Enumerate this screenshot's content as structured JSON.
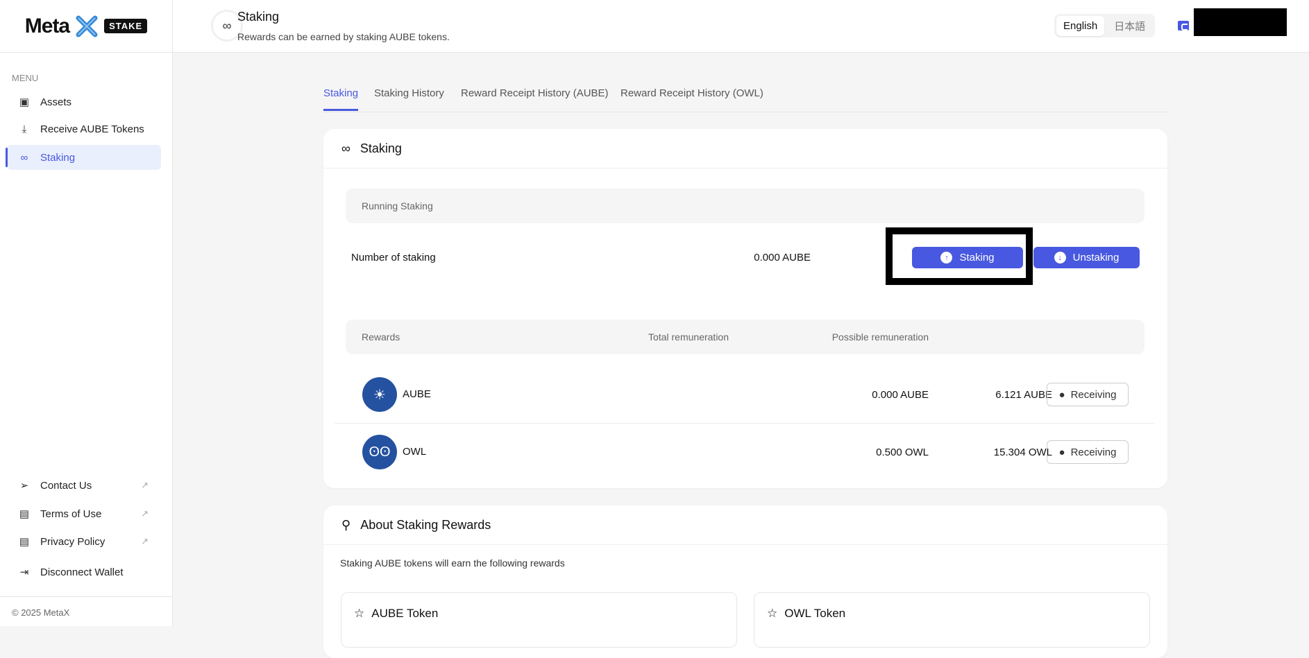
{
  "logo": {
    "text": "Meta",
    "badge": "STAKE"
  },
  "sidebar": {
    "menu_label": "MENU",
    "items": [
      {
        "label": "Assets",
        "icon": "wallet-icon"
      },
      {
        "label": "Receive AUBE Tokens",
        "icon": "download-icon"
      },
      {
        "label": "Staking",
        "icon": "staking-icon",
        "active": true
      }
    ],
    "bottom": [
      {
        "label": "Contact Us",
        "icon": "send-icon"
      },
      {
        "label": "Terms of Use",
        "icon": "document-icon"
      },
      {
        "label": "Privacy Policy",
        "icon": "document-icon"
      },
      {
        "label": "Disconnect Wallet",
        "icon": "logout-icon"
      }
    ],
    "copyright": "© 2025 MetaX"
  },
  "header": {
    "title": "Staking",
    "subtitle": "Rewards can be earned by staking AUBE tokens.",
    "languages": [
      "English",
      "日本語"
    ],
    "selected_language": "English"
  },
  "tabs": [
    "Staking",
    "Staking History",
    "Reward Receipt History (AUBE)",
    "Reward Receipt History (OWL)"
  ],
  "staking_card": {
    "title": "Staking",
    "running_label": "Running Staking",
    "number_label": "Number of staking",
    "number_value": "0.000 AUBE",
    "staking_button": "Staking",
    "unstaking_button": "Unstaking",
    "rewards_headers": [
      "Rewards",
      "Total remuneration",
      "Possible remuneration"
    ],
    "rewards": [
      {
        "token": "AUBE",
        "total": "6.121 AUBE",
        "possible": "0.000 AUBE",
        "button": "Receiving"
      },
      {
        "token": "OWL",
        "total": "15.304 OWL",
        "possible": "0.500 OWL",
        "button": "Receiving"
      }
    ]
  },
  "about_card": {
    "title": "About Staking Rewards",
    "text": "Staking AUBE tokens will earn the following rewards",
    "tokens": [
      "AUBE Token",
      "OWL Token"
    ]
  },
  "colors": {
    "accent": "#4858e0",
    "token_blue": "#2552a0"
  }
}
